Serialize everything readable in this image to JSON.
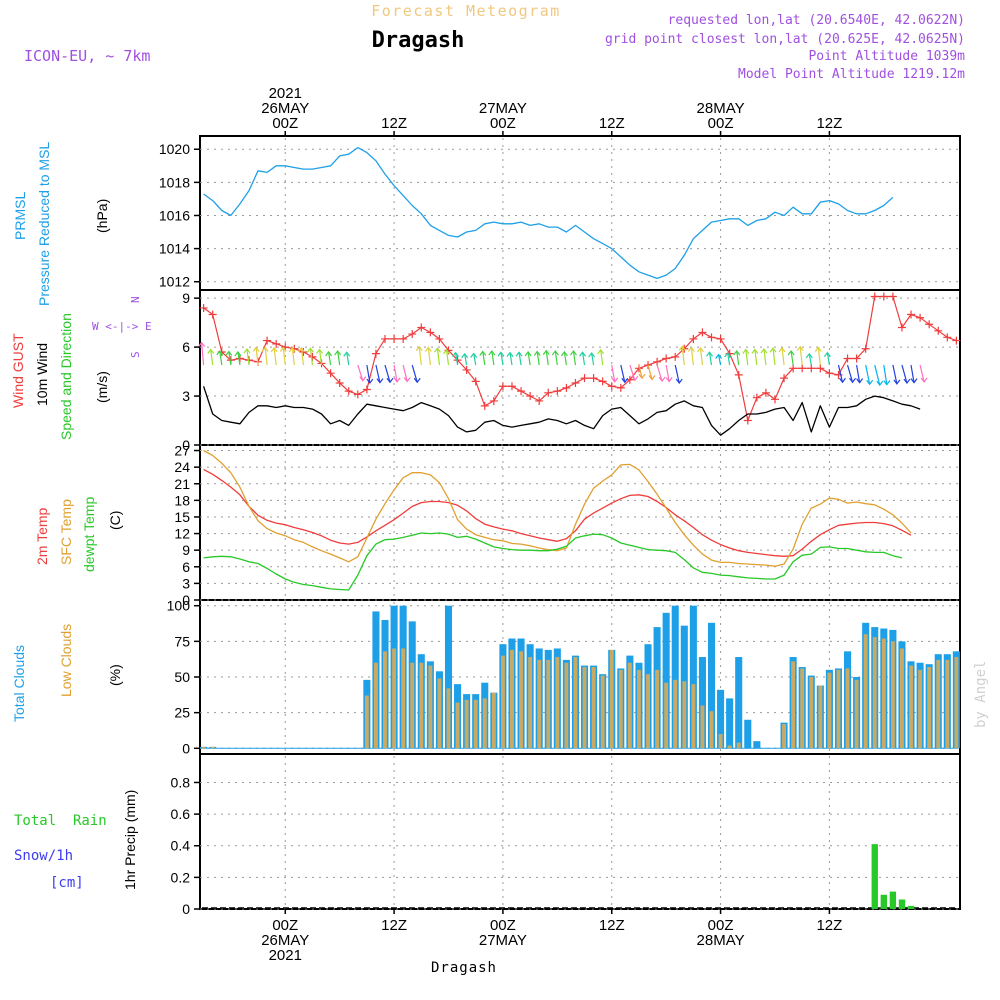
{
  "header": {
    "title": "Forecast Meteogram",
    "location": "Dragash",
    "model": "ICON-EU, ~ 7km",
    "requested": "requested lon,lat (20.6540E, 42.0622N)",
    "grid_point": "grid point closest lon,lat (20.625E, 42.0625N)",
    "point_altitude": "Point Altitude 1039m",
    "model_altitude": "Model Point Altitude 1219.12m",
    "footer_location": "Dragash",
    "watermark": "by Angel"
  },
  "colors": {
    "pressure": "#1ea0e8",
    "gust": "#f03c3c",
    "wind10m": "#000000",
    "temp2m": "#f03c3c",
    "sfc": "#e0a030",
    "dewpt": "#28c828",
    "total_clouds": "#1ea0e8",
    "low_clouds": "#c8aa64",
    "rain": "#28c828",
    "snow_label": "#3c3cf0",
    "meta": "#a050e0",
    "title": "#f0c880"
  },
  "time_axis": {
    "top_labels": [
      {
        "t": 0,
        "lines": [
          "2021",
          "26MAY",
          "00Z"
        ]
      },
      {
        "t": 12,
        "lines": [
          "12Z"
        ]
      },
      {
        "t": 24,
        "lines": [
          "27MAY",
          "00Z"
        ]
      },
      {
        "t": 36,
        "lines": [
          "12Z"
        ]
      },
      {
        "t": 48,
        "lines": [
          "28MAY",
          "00Z"
        ]
      },
      {
        "t": 60,
        "lines": [
          "12Z"
        ]
      }
    ],
    "bottom_labels": [
      {
        "t": 0,
        "lines": [
          "00Z",
          "26MAY",
          "2021"
        ]
      },
      {
        "t": 12,
        "lines": [
          "12Z"
        ]
      },
      {
        "t": 24,
        "lines": [
          "00Z",
          "27MAY"
        ]
      },
      {
        "t": 36,
        "lines": [
          "12Z"
        ]
      },
      {
        "t": 48,
        "lines": [
          "00Z",
          "28MAY"
        ]
      },
      {
        "t": 60,
        "lines": [
          "12Z"
        ]
      }
    ]
  },
  "panels": {
    "pressure": {
      "labels": [
        "PRMSL",
        "Pressure Reduced to MSL"
      ],
      "unit": "(hPa)"
    },
    "wind": {
      "labels": [
        "Wind GUST",
        "10m Wind",
        "Speed and Direction"
      ],
      "unit": "(m/s)",
      "compass": [
        "N",
        "W <-|-> E",
        "S"
      ]
    },
    "temp": {
      "labels": [
        "2m Temp",
        "SFC Temp",
        "dewpt Temp"
      ],
      "unit": "(C)"
    },
    "clouds": {
      "labels": [
        "Total Clouds",
        "Low Clouds"
      ],
      "unit": "(%)"
    },
    "precip": {
      "labels": [
        "Total  Rain",
        "Snow/1h",
        "[cm]"
      ],
      "axis_label": "1hr Precip (mm)"
    }
  },
  "chart_data": [
    {
      "type": "line",
      "name": "pressure",
      "ylabel": "(hPa)",
      "ylim": [
        1011.5,
        1020.8
      ],
      "yticks": [
        1012,
        1014,
        1016,
        1018,
        1020
      ],
      "x_start": -9,
      "x_step": 1,
      "series": [
        {
          "name": "PRMSL",
          "values": [
            1017.3,
            1016.9,
            1016.3,
            1016.0,
            1016.7,
            1017.5,
            1018.7,
            1018.6,
            1019.0,
            1019.0,
            1018.9,
            1018.8,
            1018.8,
            1018.9,
            1019.0,
            1019.6,
            1019.7,
            1020.1,
            1019.8,
            1019.3,
            1018.5,
            1017.8,
            1017.2,
            1016.6,
            1016.1,
            1015.4,
            1015.1,
            1014.8,
            1014.7,
            1015.0,
            1015.1,
            1015.5,
            1015.6,
            1015.5,
            1015.5,
            1015.6,
            1015.4,
            1015.5,
            1015.3,
            1015.3,
            1015.0,
            1015.4,
            1015.0,
            1014.6,
            1014.3,
            1014.0,
            1013.5,
            1013.0,
            1012.6,
            1012.4,
            1012.2,
            1012.4,
            1012.8,
            1013.6,
            1014.6,
            1015.1,
            1015.6,
            1015.7,
            1015.8,
            1015.8,
            1015.4,
            1015.7,
            1015.8,
            1016.2,
            1016.0,
            1016.5,
            1016.1,
            1016.1,
            1016.8,
            1016.9,
            1016.7,
            1016.3,
            1016.1,
            1016.1,
            1016.3,
            1016.6,
            1017.1
          ]
        }
      ]
    },
    {
      "type": "line",
      "name": "wind",
      "ylabel": "(m/s)",
      "ylim": [
        0,
        9.5
      ],
      "yticks": [
        0,
        3,
        6,
        9
      ],
      "x_start": -9,
      "x_step": 1,
      "series": [
        {
          "name": "Wind GUST",
          "values": [
            8.4,
            8.0,
            5.7,
            5.2,
            5.3,
            5.2,
            5.1,
            6.4,
            6.2,
            6.0,
            5.9,
            5.7,
            5.4,
            5.0,
            4.4,
            3.8,
            3.3,
            3.1,
            3.4,
            5.6,
            6.5,
            6.5,
            6.5,
            6.8,
            7.2,
            6.9,
            6.5,
            5.8,
            5.2,
            4.6,
            3.9,
            2.4,
            2.7,
            3.6,
            3.6,
            3.3,
            3.0,
            2.7,
            3.2,
            3.3,
            3.5,
            3.8,
            4.1,
            4.1,
            3.9,
            3.6,
            3.5,
            4.0,
            4.7,
            4.9,
            5.1,
            5.3,
            5.4,
            5.9,
            6.5,
            6.9,
            6.6,
            6.5,
            5.6,
            4.3,
            1.5,
            2.9,
            3.2,
            2.8,
            4.1,
            4.7,
            4.7,
            4.7,
            4.7,
            4.4,
            4.3,
            5.3,
            5.3,
            5.9,
            9.1,
            9.1,
            9.1,
            7.2,
            8.0,
            7.8,
            7.4,
            7.0,
            6.6,
            6.4
          ]
        },
        {
          "name": "10m Wind",
          "values": [
            3.6,
            1.9,
            1.5,
            1.4,
            1.3,
            2.0,
            2.4,
            2.4,
            2.3,
            2.4,
            2.3,
            2.3,
            2.2,
            1.9,
            1.3,
            1.5,
            1.2,
            1.9,
            2.5,
            2.4,
            2.3,
            2.2,
            2.1,
            2.3,
            2.6,
            2.4,
            2.2,
            1.8,
            1.1,
            0.8,
            0.9,
            1.4,
            1.5,
            1.2,
            1.1,
            1.2,
            1.3,
            1.4,
            1.6,
            1.5,
            1.3,
            1.5,
            1.2,
            1.0,
            1.8,
            2.2,
            2.3,
            1.8,
            1.3,
            1.6,
            2.0,
            2.1,
            2.5,
            2.7,
            2.4,
            2.3,
            1.2,
            0.6,
            1.0,
            1.5,
            1.9,
            1.9,
            2.0,
            2.2,
            2.3,
            1.5,
            2.6,
            0.8,
            2.4,
            1.1,
            2.3,
            2.3,
            2.4,
            2.8,
            3.0,
            2.9,
            2.7,
            2.5,
            2.4,
            2.2
          ]
        }
      ]
    },
    {
      "type": "line",
      "name": "temperature",
      "ylabel": "(C)",
      "ylim": [
        0,
        28
      ],
      "yticks": [
        0,
        3,
        6,
        9,
        12,
        15,
        18,
        21,
        24,
        27
      ],
      "x_start": -9,
      "x_step": 1,
      "series": [
        {
          "name": "2m Temp",
          "values": [
            23.6,
            22.7,
            21.6,
            20.4,
            19.0,
            16.9,
            15.3,
            14.4,
            13.9,
            13.6,
            13.1,
            12.7,
            12.2,
            11.6,
            10.8,
            10.3,
            10.1,
            10.4,
            11.4,
            12.5,
            13.5,
            14.5,
            15.7,
            16.9,
            17.6,
            17.8,
            17.8,
            17.6,
            17.1,
            16.1,
            14.7,
            13.7,
            13.2,
            12.8,
            12.5,
            12.0,
            11.6,
            11.2,
            10.9,
            10.6,
            11.1,
            12.5,
            14.6,
            15.7,
            16.6,
            17.5,
            18.3,
            18.9,
            19.0,
            18.7,
            17.8,
            16.7,
            15.4,
            14.3,
            13.1,
            11.8,
            10.8,
            10.0,
            9.4,
            8.9,
            8.6,
            8.4,
            8.2,
            8.0,
            7.9,
            8.0,
            9.2,
            10.6,
            11.8,
            12.7,
            13.5,
            13.7,
            13.9,
            14.0,
            14.0,
            13.8,
            13.4,
            12.6,
            11.7
          ]
        },
        {
          "name": "SFC Temp",
          "values": [
            27.0,
            26.1,
            24.7,
            23.0,
            20.4,
            16.9,
            14.3,
            12.9,
            12.1,
            11.6,
            10.9,
            10.4,
            9.6,
            8.9,
            8.3,
            7.6,
            6.9,
            7.8,
            11.2,
            14.6,
            17.4,
            19.9,
            22.1,
            23.0,
            23.0,
            22.6,
            21.2,
            18.3,
            14.5,
            12.8,
            11.8,
            11.3,
            10.9,
            10.7,
            10.2,
            10.1,
            9.8,
            9.4,
            9.1,
            8.9,
            9.4,
            13.7,
            17.3,
            20.2,
            21.5,
            22.6,
            24.4,
            24.5,
            23.5,
            21.4,
            19.1,
            16.6,
            14.0,
            11.8,
            9.9,
            8.3,
            7.2,
            6.8,
            6.8,
            6.6,
            6.5,
            6.4,
            6.3,
            6.1,
            6.5,
            9.2,
            13.7,
            16.6,
            17.3,
            18.4,
            18.2,
            17.5,
            17.7,
            17.4,
            17.2,
            16.4,
            15.4,
            13.9,
            12.1
          ]
        },
        {
          "name": "dewpt Temp",
          "values": [
            7.6,
            7.8,
            7.9,
            7.8,
            7.4,
            6.9,
            6.6,
            5.7,
            4.7,
            3.8,
            3.2,
            2.8,
            2.6,
            2.3,
            2.0,
            1.9,
            1.8,
            4.5,
            8.0,
            10.1,
            10.9,
            11.0,
            11.3,
            11.7,
            12.1,
            12.0,
            12.1,
            11.9,
            11.3,
            11.5,
            11.0,
            10.3,
            9.6,
            9.3,
            9.1,
            9.0,
            9.0,
            8.9,
            8.9,
            9.2,
            9.7,
            11.2,
            11.6,
            11.9,
            11.8,
            11.2,
            10.3,
            9.9,
            9.5,
            9.1,
            9.0,
            8.9,
            8.6,
            7.3,
            5.8,
            5.0,
            4.8,
            4.5,
            4.4,
            4.2,
            4.0,
            3.9,
            3.8,
            3.8,
            4.5,
            6.9,
            8.1,
            8.3,
            9.5,
            9.6,
            9.3,
            9.3,
            9.0,
            8.7,
            8.6,
            8.6,
            8.0,
            7.6
          ]
        }
      ]
    },
    {
      "type": "bar",
      "name": "clouds",
      "ylabel": "(%)",
      "ylim": [
        -4,
        104
      ],
      "yticks": [
        0,
        25,
        50,
        75,
        100
      ],
      "x_start": -9,
      "x_step": 1,
      "series": [
        {
          "name": "Total Clouds",
          "values": [
            1,
            1,
            0,
            0,
            0,
            0,
            0,
            0,
            0,
            0,
            0,
            0,
            0,
            0,
            0,
            0,
            0,
            0,
            48,
            96,
            90,
            100,
            100,
            89,
            66,
            61,
            54,
            100,
            45,
            38,
            38,
            46,
            39,
            73,
            77,
            77,
            73,
            70,
            69,
            70,
            62,
            65,
            58,
            58,
            52,
            69,
            56,
            65,
            60,
            73,
            85,
            95,
            100,
            86,
            100,
            64,
            88,
            41,
            35,
            64,
            20,
            5,
            0,
            0,
            18,
            64,
            57,
            51,
            44,
            55,
            56,
            68,
            50,
            88,
            85,
            84,
            83,
            75,
            61,
            60,
            59,
            66,
            66,
            68
          ]
        },
        {
          "name": "Low Clouds",
          "values": [
            1,
            1,
            0,
            0,
            0,
            0,
            0,
            0,
            0,
            0,
            0,
            0,
            0,
            0,
            0,
            0,
            0,
            0,
            37,
            60,
            68,
            70,
            70,
            60,
            60,
            58,
            49,
            42,
            32,
            34,
            34,
            35,
            39,
            65,
            69,
            68,
            64,
            62,
            62,
            64,
            60,
            64,
            57,
            57,
            51,
            69,
            55,
            60,
            55,
            52,
            55,
            46,
            48,
            47,
            45,
            30,
            26,
            10,
            2,
            4,
            0,
            0,
            0,
            0,
            17,
            61,
            56,
            50,
            44,
            53,
            55,
            56,
            48,
            80,
            78,
            77,
            75,
            70,
            58,
            55,
            57,
            62,
            62,
            64
          ]
        }
      ]
    },
    {
      "type": "bar",
      "name": "precipitation",
      "ylabel": "1hr Precip (mm)",
      "ylim": [
        0,
        0.98
      ],
      "yticks": [
        0,
        0.2,
        0.4,
        0.6,
        0.8
      ],
      "x_start": -9,
      "x_step": 1,
      "series": [
        {
          "name": "Total Rain",
          "values": [
            0,
            0,
            0,
            0,
            0,
            0,
            0,
            0,
            0,
            0,
            0,
            0,
            0,
            0,
            0,
            0,
            0,
            0,
            0,
            0,
            0,
            0,
            0,
            0,
            0,
            0,
            0,
            0,
            0,
            0,
            0,
            0,
            0,
            0,
            0,
            0,
            0,
            0,
            0,
            0,
            0,
            0,
            0,
            0,
            0,
            0,
            0,
            0,
            0,
            0,
            0,
            0,
            0,
            0,
            0,
            0,
            0,
            0,
            0,
            0,
            0,
            0,
            0,
            0,
            0,
            0,
            0,
            0,
            0,
            0,
            0,
            0,
            0,
            0,
            0.41,
            0.09,
            0.11,
            0.06,
            0.02,
            0,
            0,
            0,
            0,
            0
          ]
        },
        {
          "name": "Snow/1h",
          "values": [
            0,
            0,
            0,
            0,
            0,
            0,
            0,
            0,
            0,
            0,
            0,
            0,
            0,
            0,
            0,
            0,
            0,
            0,
            0,
            0,
            0,
            0,
            0,
            0,
            0,
            0,
            0,
            0,
            0,
            0,
            0,
            0,
            0,
            0,
            0,
            0,
            0,
            0,
            0,
            0,
            0,
            0,
            0,
            0,
            0,
            0,
            0,
            0,
            0,
            0,
            0,
            0,
            0,
            0,
            0,
            0,
            0,
            0,
            0,
            0,
            0,
            0,
            0,
            0,
            0,
            0,
            0,
            0,
            0,
            0,
            0,
            0,
            0,
            0,
            0,
            0,
            0,
            0,
            0,
            0,
            0,
            0,
            0,
            0
          ]
        }
      ]
    }
  ],
  "wind_direction_colors": [
    "#2040e0",
    "#00b4e8",
    "#20d0a0",
    "#40d040",
    "#a0e030",
    "#e0d040",
    "#f0a040",
    "#ff70c0"
  ]
}
